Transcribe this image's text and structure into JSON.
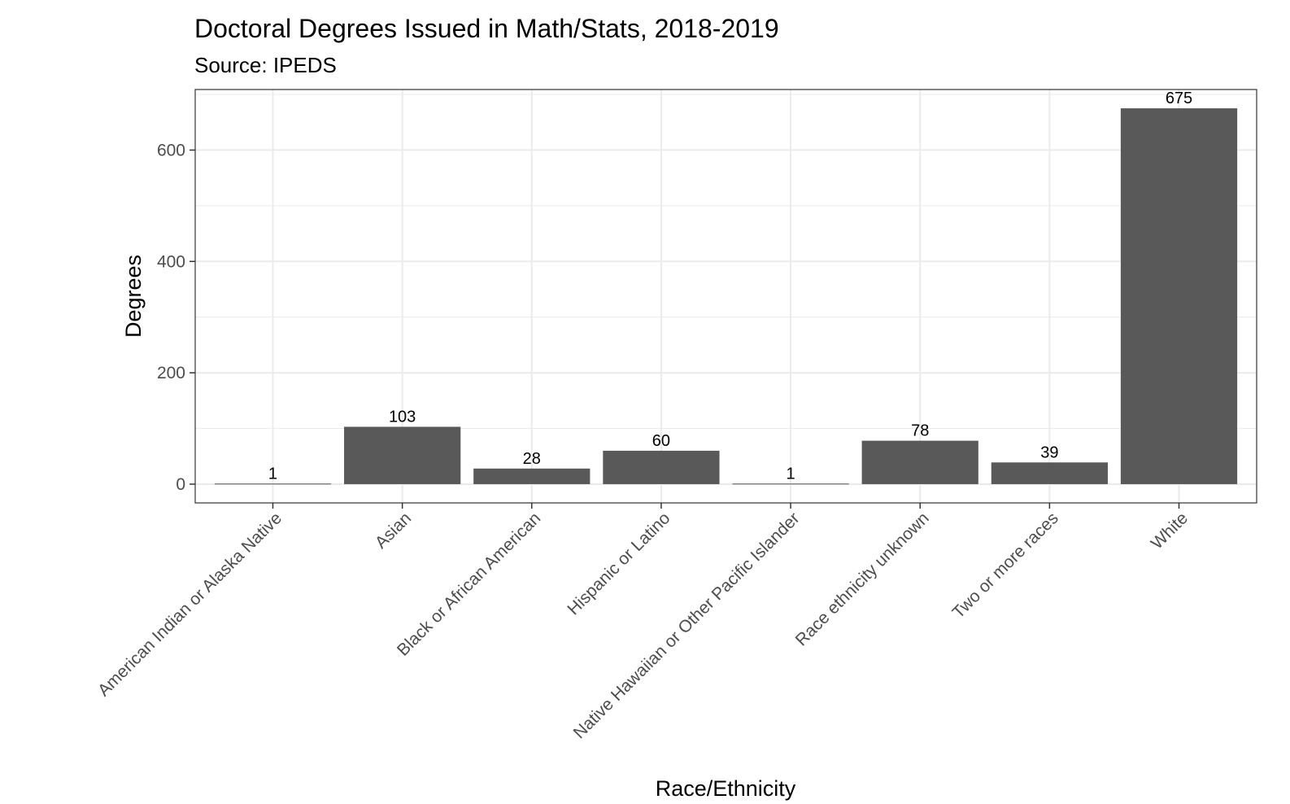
{
  "chart_data": {
    "type": "bar",
    "title": "Doctoral Degrees Issued in Math/Stats, 2018-2019",
    "subtitle": "Source: IPEDS",
    "xlabel": "Race/Ethnicity",
    "ylabel": "Degrees",
    "categories": [
      "American Indian or Alaska Native",
      "Asian",
      "Black or African American",
      "Hispanic or Latino",
      "Native Hawaiian or Other Pacific Islander",
      "Race ethnicity unknown",
      "Two or more races",
      "White"
    ],
    "values": [
      1,
      103,
      28,
      60,
      1,
      78,
      39,
      675
    ],
    "data_labels": [
      "1",
      "103",
      "28",
      "60",
      "1",
      "78",
      "39",
      "675"
    ],
    "yticks": [
      0,
      200,
      400,
      600
    ],
    "ytick_labels": [
      "0",
      "200",
      "400",
      "600"
    ],
    "ylim": [
      -33.7,
      708.75
    ],
    "grid": true,
    "bar_color": "#595959",
    "grid_color": "#ebebeb",
    "border_color": "#333333"
  }
}
